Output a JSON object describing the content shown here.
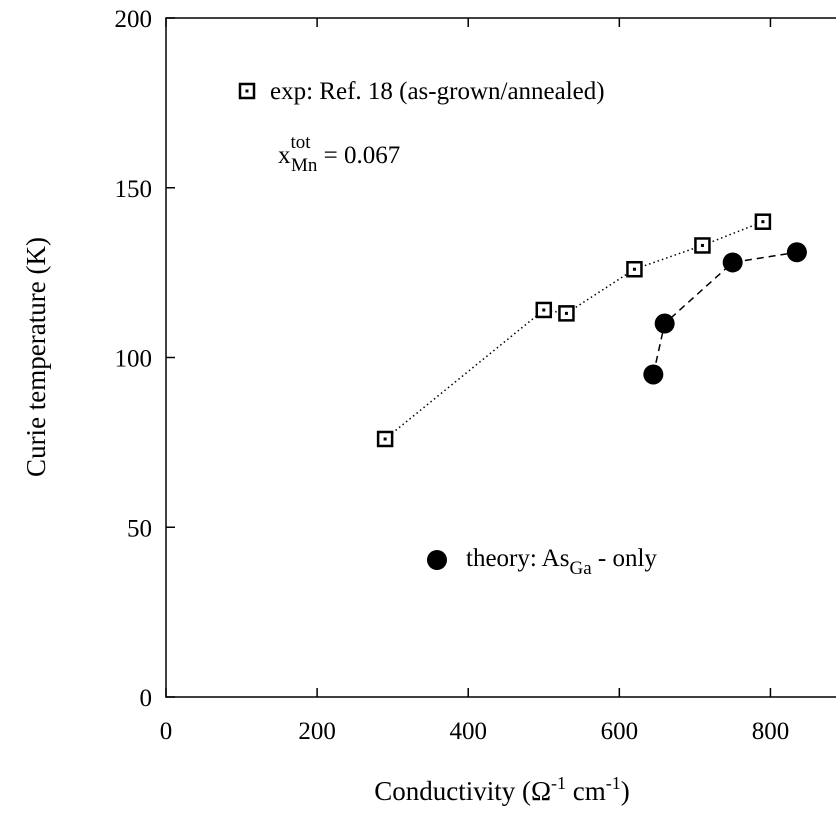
{
  "chart_data": {
    "type": "scatter",
    "xlabel": {
      "main": "Conductivity (",
      "omega": "Ω",
      "sup1": "-1",
      "mid": " cm",
      "sup2": "-1",
      "end": ")"
    },
    "ylabel": "Curie temperature (K)",
    "xlim": [
      0,
      900
    ],
    "ylim": [
      0,
      200
    ],
    "x_ticks": [
      0,
      200,
      400,
      600,
      800
    ],
    "y_ticks": [
      0,
      50,
      100,
      150,
      200
    ],
    "x_tick_labels": [
      "0",
      "200",
      "400",
      "600",
      "800"
    ],
    "y_tick_labels": [
      "0",
      "50",
      "100",
      "150",
      "200"
    ],
    "grid": false,
    "legend_position": "inside",
    "series": [
      {
        "name": "exp: Ref. 18 (as-grown/annealed)",
        "marker": "square-open",
        "line": "dotted",
        "x": [
          290,
          500,
          530,
          620,
          710,
          790
        ],
        "y": [
          76,
          114,
          113,
          126,
          133,
          140
        ]
      },
      {
        "name": "theory: As_Ga - only",
        "marker": "circle-filled",
        "line": "dashed",
        "x": [
          645,
          660,
          750,
          835
        ],
        "y": [
          95,
          110,
          128,
          131
        ]
      }
    ],
    "annotation": {
      "base": "x",
      "sup": "tot",
      "sub": "Mn",
      "value": " = 0.067"
    },
    "legend_theory": {
      "prefix": "theory: As",
      "sub": "Ga",
      "suffix": " - only"
    }
  }
}
